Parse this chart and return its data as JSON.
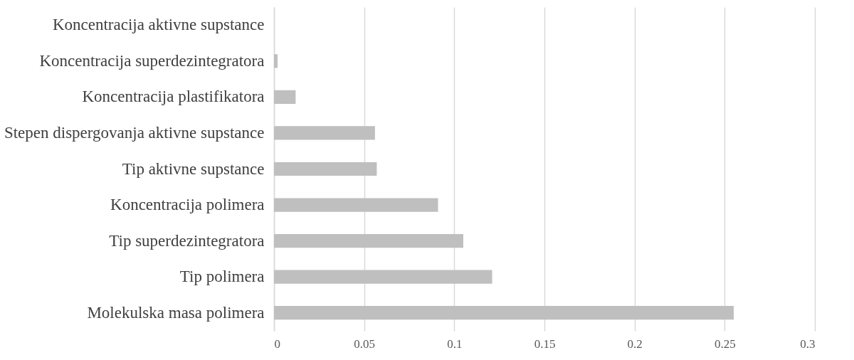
{
  "chart_data": {
    "type": "bar",
    "orientation": "horizontal",
    "categories": [
      "Koncentracija aktivne supstance",
      "Koncentracija superdezintegratora",
      "Koncentracija plastifikatora",
      "Stepen dispergovanja aktivne supstance",
      "Tip aktivne supstance",
      "Koncentracija polimera",
      "Tip superdezintegratora",
      "Tip polimera",
      "Molekulska masa polimera"
    ],
    "values": [
      0,
      0.002,
      0.012,
      0.056,
      0.057,
      0.091,
      0.105,
      0.121,
      0.255
    ],
    "color": "#bfbfbf",
    "xlim": [
      0,
      0.3
    ],
    "xticks": [
      0,
      0.05,
      0.1,
      0.15,
      0.2,
      0.25,
      0.3
    ],
    "grid": "x"
  }
}
